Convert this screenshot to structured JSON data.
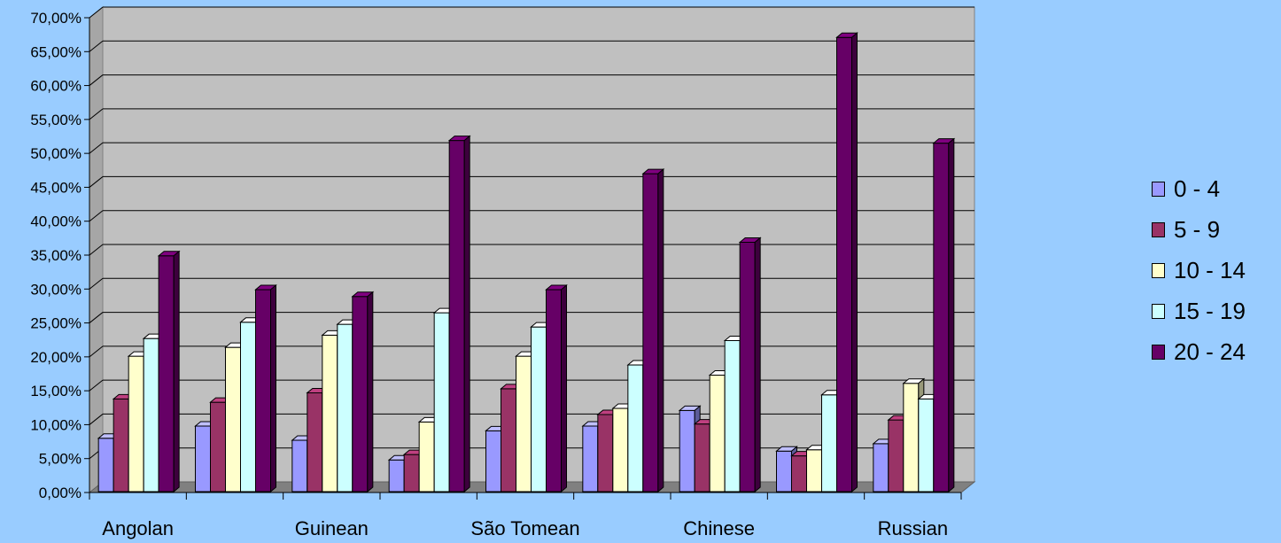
{
  "chart_data": {
    "type": "bar",
    "title": "",
    "xlabel": "",
    "ylabel": "",
    "ylim": [
      0,
      70
    ],
    "y_tick_step": 5,
    "y_tick_labels": [
      "0,00%",
      "5,00%",
      "10,00%",
      "15,00%",
      "20,00%",
      "25,00%",
      "30,00%",
      "35,00%",
      "40,00%",
      "45,00%",
      "50,00%",
      "55,00%",
      "60,00%",
      "65,00%",
      "70,00%"
    ],
    "categories": [
      "Angolan",
      "",
      "Guinean",
      "",
      "São Tomean",
      "",
      "Chinese",
      "",
      "Russian"
    ],
    "grid": true,
    "legend_position": "right",
    "series": [
      {
        "name": "0 - 4",
        "color": "#9999ff",
        "values": [
          8.0,
          9.8,
          7.7,
          4.8,
          9.1,
          9.8,
          12.1,
          6.1,
          7.2
        ]
      },
      {
        "name": "5 - 9",
        "color": "#993366",
        "values": [
          13.8,
          13.3,
          14.7,
          5.6,
          15.3,
          11.5,
          10.1,
          5.4,
          10.7
        ]
      },
      {
        "name": "10 - 14",
        "color": "#ffffcc",
        "values": [
          20.1,
          21.4,
          23.2,
          10.4,
          20.1,
          12.4,
          17.3,
          6.3,
          16.1
        ]
      },
      {
        "name": "15 - 19",
        "color": "#ccffff",
        "values": [
          22.7,
          25.1,
          24.8,
          26.5,
          24.4,
          18.8,
          22.4,
          14.4,
          13.8
        ]
      },
      {
        "name": "20 - 24",
        "color": "#660066",
        "values": [
          34.9,
          29.9,
          28.9,
          51.9,
          29.9,
          47.0,
          36.9,
          67.1,
          51.5
        ]
      }
    ]
  }
}
